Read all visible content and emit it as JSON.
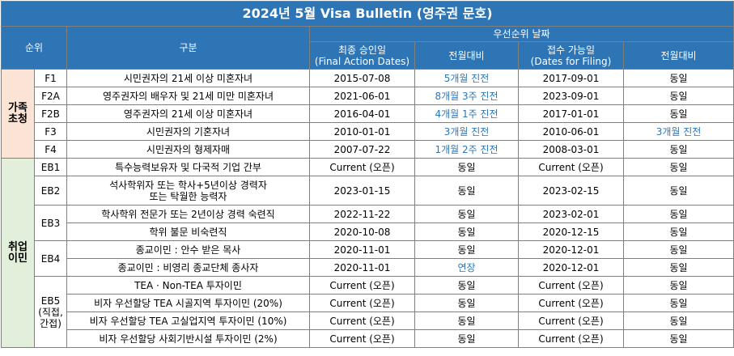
{
  "title": "2024년 5월 Visa Bulletin (영주권 문호)",
  "header": {
    "rank": "순위",
    "category": "구분",
    "priority": "우선순위 날짜",
    "final": "최종 승인일\n(Final Action Dates)",
    "final_change": "전월대비",
    "filing": "접수 가능일\n(Dates for Filing)",
    "filing_change": "전월대비"
  },
  "groups": [
    {
      "name": "가족\n초청",
      "subgroups": [
        {
          "code": "F1",
          "rows": [
            {
              "desc": "시민권자의 21세 이상 미혼자녀",
              "final": "2015-07-08",
              "final_change": {
                "text": "5개월 진전",
                "color": "#2e75b6"
              },
              "filing": "2017-09-01",
              "filing_change": {
                "text": "동일",
                "color": "#000000"
              }
            }
          ]
        },
        {
          "code": "F2A",
          "rows": [
            {
              "desc": "영주권자의 배우자 및 21세 미만 미혼자녀",
              "final": "2021-06-01",
              "final_change": {
                "text": "8개월 3주 진전",
                "color": "#2e75b6"
              },
              "filing": "2023-09-01",
              "filing_change": {
                "text": "동일",
                "color": "#000000"
              }
            }
          ]
        },
        {
          "code": "F2B",
          "rows": [
            {
              "desc": "영주권자의 21세 이상 미혼자녀",
              "final": "2016-04-01",
              "final_change": {
                "text": "4개월 1주 진전",
                "color": "#2e75b6"
              },
              "filing": "2017-01-01",
              "filing_change": {
                "text": "동일",
                "color": "#000000"
              }
            }
          ]
        },
        {
          "code": "F3",
          "rows": [
            {
              "desc": "시민권자의 기혼자녀",
              "final": "2010-01-01",
              "final_change": {
                "text": "3개월 진전",
                "color": "#2e75b6"
              },
              "filing": "2010-06-01",
              "filing_change": {
                "text": "3개월 진전",
                "color": "#2e75b6"
              }
            }
          ]
        },
        {
          "code": "F4",
          "rows": [
            {
              "desc": "시민권자의 형제자매",
              "final": "2007-07-22",
              "final_change": {
                "text": "1개월 2주 진전",
                "color": "#2e75b6"
              },
              "filing": "2008-03-01",
              "filing_change": {
                "text": "동일",
                "color": "#000000"
              }
            }
          ]
        }
      ]
    },
    {
      "name": "취업\n이민",
      "subgroups": [
        {
          "code": "EB1",
          "rows": [
            {
              "desc": "특수능력보유자 및 다국적 기업 간부",
              "final": "Current (오픈)",
              "final_change": {
                "text": "동일",
                "color": "#000000"
              },
              "filing": "Current (오픈)",
              "filing_change": {
                "text": "동일",
                "color": "#000000"
              }
            }
          ]
        },
        {
          "code": "EB2",
          "rows": [
            {
              "desc": "석사학위자 또는 학사+5년이상 경력자\n또는 탁월한 능력자",
              "final": "2023-01-15",
              "final_change": {
                "text": "동일",
                "color": "#000000"
              },
              "filing": "2023-02-15",
              "filing_change": {
                "text": "동일",
                "color": "#000000"
              }
            }
          ]
        },
        {
          "code": "EB3",
          "rows": [
            {
              "desc": "학사학위 전문가 또는 2년이상 경력 숙련직",
              "final": "2022-11-22",
              "final_change": {
                "text": "동일",
                "color": "#000000"
              },
              "filing": "2023-02-01",
              "filing_change": {
                "text": "동일",
                "color": "#000000"
              }
            },
            {
              "desc": "학위 불문 비숙련직",
              "final": "2020-10-08",
              "final_change": {
                "text": "동일",
                "color": "#000000"
              },
              "filing": "2020-12-15",
              "filing_change": {
                "text": "동일",
                "color": "#000000"
              }
            }
          ]
        },
        {
          "code": "EB4",
          "rows": [
            {
              "desc": "종교이민 : 안수 받은 목사",
              "final": "2020-11-01",
              "final_change": {
                "text": "동일",
                "color": "#000000"
              },
              "filing": "2020-12-01",
              "filing_change": {
                "text": "동일",
                "color": "#000000"
              }
            },
            {
              "desc": "종교이민 : 비영리 종교단체 종사자",
              "final": "2020-11-01",
              "final_change": {
                "text": "연장",
                "color": "#2e75b6"
              },
              "filing": "2020-12-01",
              "filing_change": {
                "text": "동일",
                "color": "#000000"
              }
            }
          ]
        },
        {
          "code": "EB5\n(직접,\n간접)",
          "rows": [
            {
              "desc": "TEA · Non-TEA 투자이민",
              "final": "Current (오픈)",
              "final_change": {
                "text": "동일",
                "color": "#000000"
              },
              "filing": "Current (오픈)",
              "filing_change": {
                "text": "동일",
                "color": "#000000"
              }
            },
            {
              "desc": "비자 우선할당 TEA 시골지역 투자이민 (20%)",
              "final": "Current (오픈)",
              "final_change": {
                "text": "동일",
                "color": "#000000"
              },
              "filing": "Current (오픈)",
              "filing_change": {
                "text": "동일",
                "color": "#000000"
              }
            },
            {
              "desc": "비자 우선할당 TEA 고실업지역 투자이민 (10%)",
              "final": "Current (오픈)",
              "final_change": {
                "text": "동일",
                "color": "#000000"
              },
              "filing": "Current (오픈)",
              "filing_change": {
                "text": "동일",
                "color": "#000000"
              }
            },
            {
              "desc": "비자 우선할당 사회기반시설 투자이민 (2%)",
              "final": "Current (오픈)",
              "final_change": {
                "text": "동일",
                "color": "#000000"
              },
              "filing": "Current (오픈)",
              "filing_change": {
                "text": "동일",
                "color": "#000000"
              }
            }
          ]
        }
      ]
    }
  ]
}
